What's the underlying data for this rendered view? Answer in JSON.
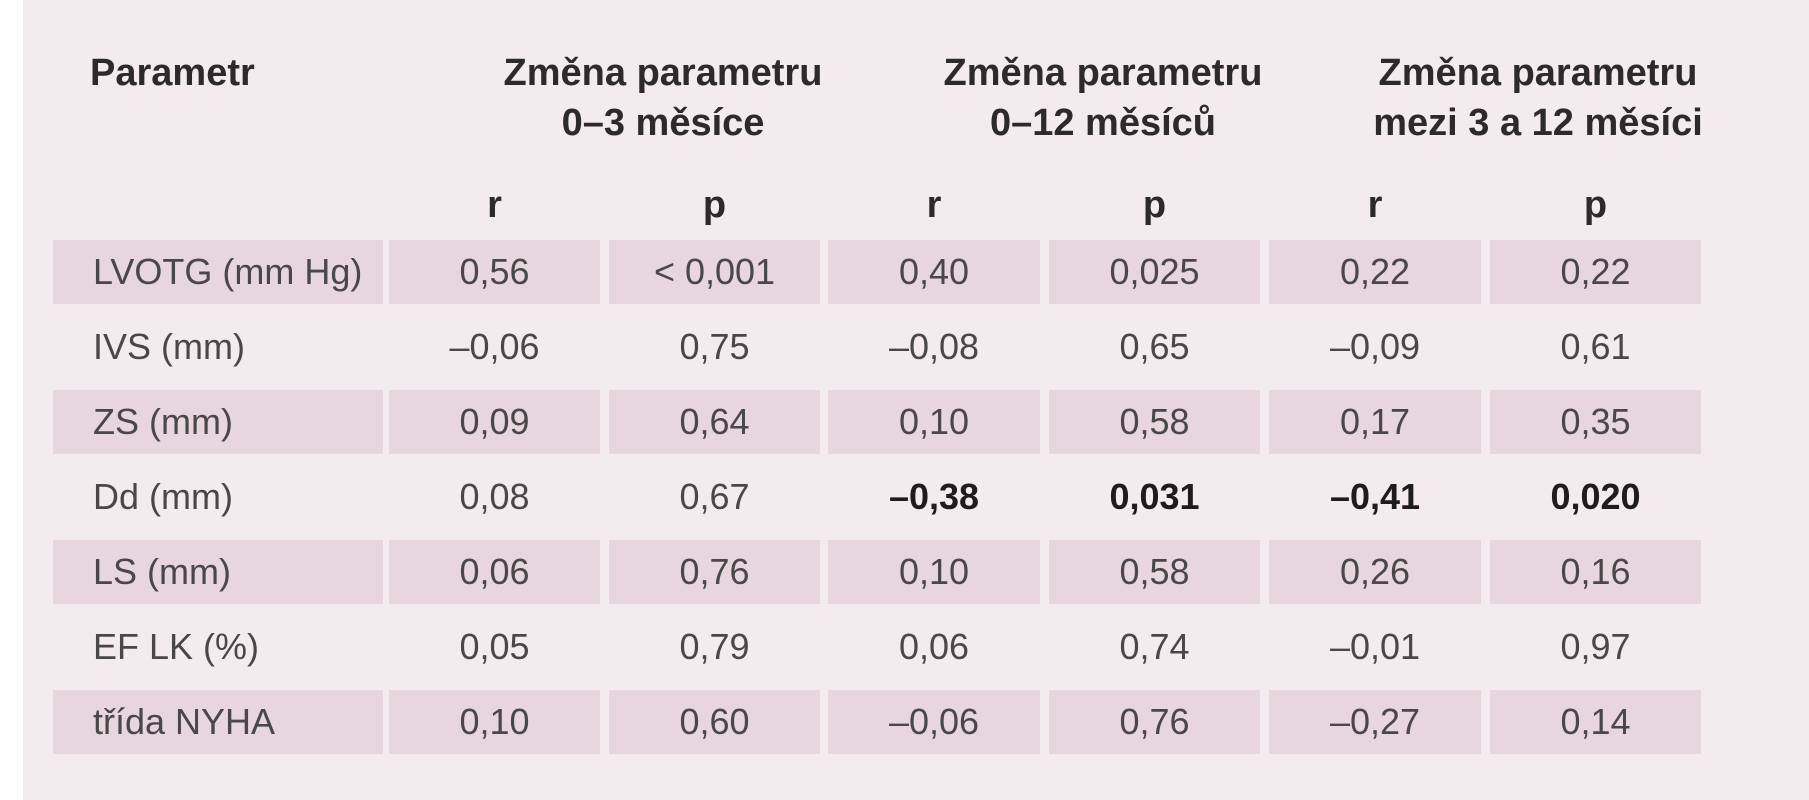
{
  "table": {
    "header": {
      "param": "Parametr",
      "groups": [
        {
          "line1": "Změna parametru",
          "line2": "0–3 měsíce"
        },
        {
          "line1": "Změna parametru",
          "line2": "0–12 měsíců"
        },
        {
          "line1": "Změna parametru",
          "line2": "mezi 3 a 12 měsíci"
        }
      ],
      "sub": [
        "r",
        "p",
        "r",
        "p",
        "r",
        "p"
      ]
    },
    "rows": [
      {
        "label": "LVOTG (mm Hg)",
        "values": [
          "0,56",
          "< 0,001",
          "0,40",
          "0,025",
          "0,22",
          "0,22"
        ],
        "bold": [
          false,
          false,
          false,
          false,
          false,
          false
        ]
      },
      {
        "label": "IVS (mm)",
        "values": [
          "–0,06",
          "0,75",
          "–0,08",
          "0,65",
          "–0,09",
          "0,61"
        ],
        "bold": [
          false,
          false,
          false,
          false,
          false,
          false
        ]
      },
      {
        "label": "ZS (mm)",
        "values": [
          "0,09",
          "0,64",
          "0,10",
          "0,58",
          "0,17",
          "0,35"
        ],
        "bold": [
          false,
          false,
          false,
          false,
          false,
          false
        ]
      },
      {
        "label": "Dd (mm)",
        "values": [
          "0,08",
          "0,67",
          "–0,38",
          "0,031",
          "–0,41",
          "0,020"
        ],
        "bold": [
          false,
          false,
          true,
          true,
          true,
          true
        ]
      },
      {
        "label": "LS (mm)",
        "values": [
          "0,06",
          "0,76",
          "0,10",
          "0,58",
          "0,26",
          "0,16"
        ],
        "bold": [
          false,
          false,
          false,
          false,
          false,
          false
        ]
      },
      {
        "label": "EF LK (%)",
        "values": [
          "0,05",
          "0,79",
          "0,06",
          "0,74",
          "–0,01",
          "0,97"
        ],
        "bold": [
          false,
          false,
          false,
          false,
          false,
          false
        ]
      },
      {
        "label": "třída NYHA",
        "values": [
          "0,10",
          "0,60",
          "–0,06",
          "0,76",
          "–0,27",
          "0,14"
        ],
        "bold": [
          false,
          false,
          false,
          false,
          false,
          false
        ]
      }
    ]
  }
}
